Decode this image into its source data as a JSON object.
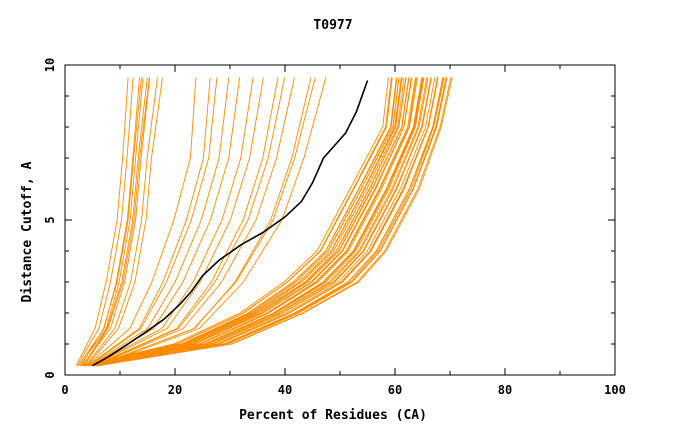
{
  "chart_data": {
    "type": "line",
    "title": "T0977",
    "xlabel": "Percent of Residues (CA)",
    "ylabel": "Distance Cutoff, A",
    "xlim": [
      0,
      100
    ],
    "ylim": [
      0,
      10
    ],
    "x_ticks": [
      0,
      20,
      40,
      60,
      80,
      100
    ],
    "y_ticks": [
      0,
      5,
      10
    ],
    "grid": false,
    "colors": {
      "models": "#ff8c00",
      "highlight": "#000000",
      "axis": "#000000"
    },
    "highlight_series": {
      "name": "highlighted-model",
      "points": [
        [
          5,
          0.3
        ],
        [
          8,
          0.6
        ],
        [
          11,
          0.95
        ],
        [
          14,
          1.3
        ],
        [
          18,
          1.8
        ],
        [
          21,
          2.3
        ],
        [
          23,
          2.7
        ],
        [
          25,
          3.2
        ],
        [
          28,
          3.7
        ],
        [
          32,
          4.2
        ],
        [
          36,
          4.6
        ],
        [
          40,
          5.1
        ],
        [
          43,
          5.6
        ],
        [
          45,
          6.2
        ],
        [
          47,
          7.0
        ],
        [
          49,
          7.4
        ],
        [
          51,
          7.8
        ],
        [
          53,
          8.5
        ],
        [
          55,
          9.5
        ]
      ]
    },
    "bundles": [
      {
        "name": "steep-group",
        "start": [
          [
            2,
            0.3
          ],
          [
            6,
            1.5
          ],
          [
            8,
            3.0
          ],
          [
            10,
            5.0
          ],
          [
            11,
            7.0
          ],
          [
            12,
            9.6
          ]
        ],
        "end": [
          [
            4,
            0.3
          ],
          [
            9,
            1.5
          ],
          [
            12,
            3.0
          ],
          [
            14,
            5.0
          ],
          [
            15,
            7.0
          ],
          [
            17,
            9.6
          ]
        ],
        "count": 10
      },
      {
        "name": "middle-group",
        "start": [
          [
            4,
            0.3
          ],
          [
            12,
            1.5
          ],
          [
            16,
            3.0
          ],
          [
            20,
            5.0
          ],
          [
            23,
            7.0
          ],
          [
            24,
            9.6
          ]
        ],
        "end": [
          [
            6,
            0.3
          ],
          [
            25,
            1.5
          ],
          [
            33,
            3.0
          ],
          [
            40,
            5.0
          ],
          [
            44,
            7.0
          ],
          [
            48,
            9.6
          ]
        ],
        "count": 13
      },
      {
        "name": "main-group",
        "start": [
          [
            3,
            0.3
          ],
          [
            20,
            1.0
          ],
          [
            32,
            2.0
          ],
          [
            40,
            3.0
          ],
          [
            46,
            4.0
          ],
          [
            49,
            5.0
          ],
          [
            52,
            6.0
          ],
          [
            55,
            7.0
          ],
          [
            58,
            8.0
          ],
          [
            59,
            9.6
          ]
        ],
        "end": [
          [
            6,
            0.3
          ],
          [
            30,
            1.0
          ],
          [
            43,
            2.0
          ],
          [
            53,
            3.0
          ],
          [
            58,
            4.0
          ],
          [
            61,
            5.0
          ],
          [
            64,
            6.0
          ],
          [
            66,
            7.0
          ],
          [
            68,
            8.0
          ],
          [
            70,
            9.6
          ]
        ],
        "count": 45
      }
    ]
  }
}
